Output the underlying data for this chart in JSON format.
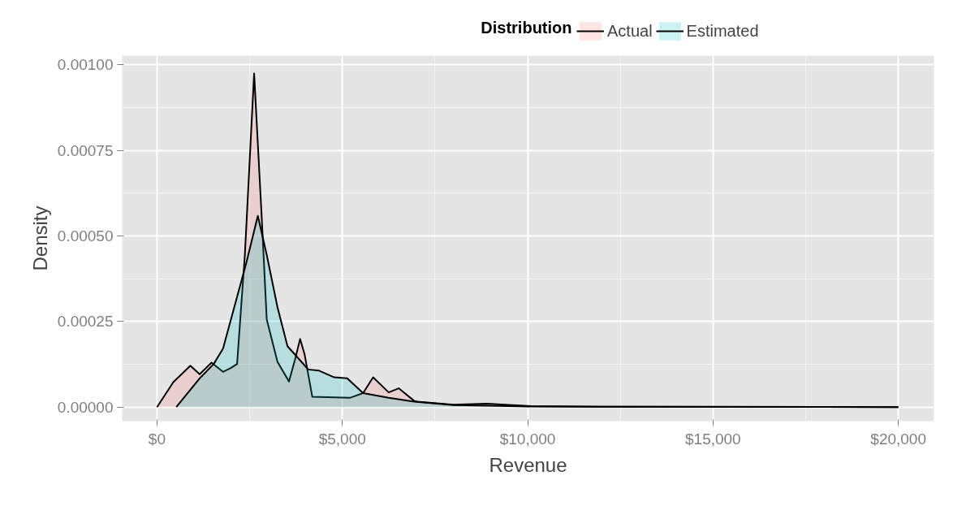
{
  "chart_data": {
    "type": "area",
    "xlabel": "Revenue",
    "ylabel": "Density",
    "legend_title": "Distribution",
    "legend": "top",
    "grid": true,
    "xlim": [
      -940,
      20960
    ],
    "ylim": [
      -4.1e-05,
      0.001027
    ],
    "xticks": [
      {
        "value": 0,
        "label": "$0"
      },
      {
        "value": 5000,
        "label": "$5,000"
      },
      {
        "value": 10000,
        "label": "$10,000"
      },
      {
        "value": 15000,
        "label": "$15,000"
      },
      {
        "value": 20000,
        "label": "$20,000"
      }
    ],
    "yticks": [
      {
        "value": 0,
        "label": "0.00000"
      },
      {
        "value": 0.00025,
        "label": "0.00025"
      },
      {
        "value": 0.0005,
        "label": "0.00050"
      },
      {
        "value": 0.00075,
        "label": "0.00075"
      },
      {
        "value": 0.001,
        "label": "0.00100"
      }
    ],
    "series": [
      {
        "name": "Actual",
        "color": "#f8766d",
        "x": [
          0,
          440,
          900,
          1150,
          1470,
          1780,
          1990,
          2160,
          2370,
          2620,
          2830,
          2960,
          3250,
          3560,
          3730,
          3860,
          3980,
          4190,
          5200,
          5560,
          5830,
          6250,
          6520,
          6940,
          7020,
          7990,
          8900,
          10090,
          12000,
          20000
        ],
        "values": [
          0,
          7.3e-05,
          0.000121,
          9.6e-05,
          0.00013,
          0.000103,
          0.000114,
          0.000126,
          0.000445,
          0.000975,
          0.000543,
          0.000256,
          0.000132,
          7.5e-05,
          0.000142,
          0.000199,
          0.000155,
          3e-05,
          2.7e-05,
          4.1e-05,
          8.7e-05,
          4.3e-05,
          5.5e-05,
          1.8e-05,
          1.6e-05,
          7e-06,
          1e-05,
          3e-06,
          1e-06,
          0
        ]
      },
      {
        "name": "Estimated",
        "color": "#00bfc4",
        "x": [
          520,
          1150,
          1530,
          1780,
          2050,
          2410,
          2720,
          2960,
          3250,
          3520,
          4080,
          4360,
          4780,
          5130,
          5560,
          6250,
          6940,
          8000,
          9000,
          10000,
          12000,
          20000
        ],
        "values": [
          0,
          8.4e-05,
          0.000126,
          0.000171,
          0.000278,
          0.000422,
          0.000559,
          0.000445,
          0.000292,
          0.000178,
          0.00011,
          0.000107,
          8.7e-05,
          8.4e-05,
          4.1e-05,
          2.7e-05,
          1.6e-05,
          6e-06,
          4e-06,
          2e-06,
          1e-06,
          0
        ]
      }
    ]
  }
}
